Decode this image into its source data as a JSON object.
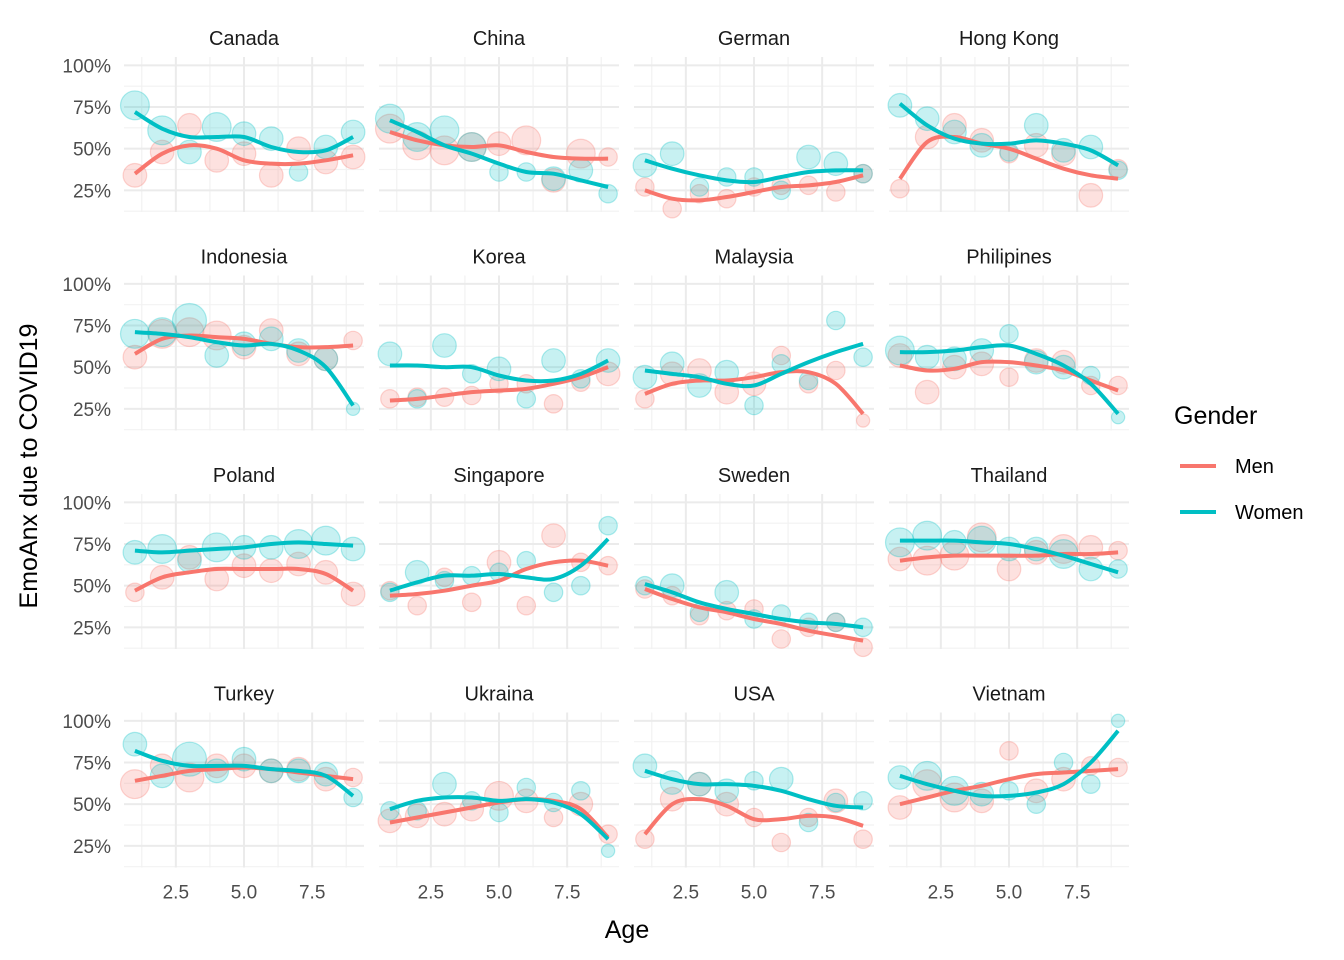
{
  "chart_data": {
    "type": "scatter",
    "facet_layout": "4x4",
    "xlabel": "Age",
    "ylabel": "EmoAnx due to COVID19",
    "x_ticks": [
      "2.5",
      "5.0",
      "7.5"
    ],
    "x_tick_values": [
      2.5,
      5.0,
      7.5
    ],
    "y_ticks": [
      "100%",
      "75%",
      "50%",
      "25%"
    ],
    "y_tick_values": [
      100,
      75,
      50,
      25
    ],
    "xlim": [
      0.6,
      9.4
    ],
    "ylim": [
      12,
      105
    ],
    "grid": true,
    "x": [
      1,
      2,
      3,
      4,
      5,
      6,
      7,
      8,
      9
    ],
    "legend": {
      "title": "Gender",
      "position": "right",
      "entries": [
        "Men",
        "Women"
      ]
    },
    "colors": {
      "Men": "#F8766D",
      "Women": "#00BFC4"
    },
    "overlay": "smooth line",
    "panels": [
      {
        "name": "Canada",
        "men": {
          "points": [
            34,
            48,
            64,
            43,
            47,
            34,
            50,
            42,
            45
          ],
          "sizes": [
            3,
            3,
            3,
            3,
            3,
            3,
            3,
            3,
            3
          ],
          "line": [
            35,
            47,
            52,
            50,
            43,
            41,
            41,
            43,
            46
          ]
        },
        "women": {
          "points": [
            76,
            61,
            48,
            63,
            59,
            56,
            36,
            51,
            60
          ],
          "sizes": [
            4,
            4,
            3,
            4,
            3,
            3,
            2,
            3,
            3
          ],
          "line": [
            72,
            62,
            57,
            57,
            57,
            51,
            48,
            49,
            57
          ]
        }
      },
      {
        "name": "China",
        "men": {
          "points": [
            62,
            52,
            49,
            51,
            53,
            55,
            31,
            47,
            45
          ],
          "sizes": [
            4,
            4,
            4,
            4,
            3,
            4,
            3,
            4,
            2
          ],
          "line": [
            60,
            55,
            52,
            51,
            52,
            48,
            45,
            44,
            44
          ]
        },
        "women": {
          "points": [
            68,
            57,
            61,
            51,
            36,
            36,
            32,
            37,
            23
          ],
          "sizes": [
            4,
            4,
            4,
            4,
            2,
            2,
            3,
            3,
            2
          ],
          "line": [
            67,
            60,
            52,
            47,
            41,
            36,
            35,
            31,
            27
          ]
        }
      },
      {
        "name": "German",
        "men": {
          "points": [
            27,
            14,
            23,
            20,
            27,
            28,
            28,
            24,
            35
          ],
          "sizes": [
            2,
            2,
            2,
            2,
            2,
            2,
            2,
            2,
            2
          ],
          "line": [
            25,
            20,
            19,
            21,
            24,
            27,
            28,
            30,
            34
          ]
        },
        "women": {
          "points": [
            40,
            47,
            27,
            33,
            33,
            25,
            45,
            41,
            35
          ],
          "sizes": [
            3,
            3,
            2,
            2,
            2,
            2,
            3,
            3,
            2
          ],
          "line": [
            43,
            38,
            34,
            31,
            30,
            33,
            36,
            37,
            37
          ]
        }
      },
      {
        "name": "Hong Kong",
        "men": {
          "points": [
            26,
            57,
            64,
            55,
            47,
            52,
            47,
            22,
            38
          ],
          "sizes": [
            2,
            3,
            3,
            3,
            2,
            3,
            3,
            3,
            2
          ],
          "line": [
            32,
            54,
            57,
            53,
            50,
            44,
            38,
            34,
            32
          ]
        },
        "women": {
          "points": [
            76,
            68,
            60,
            52,
            48,
            64,
            49,
            51,
            37
          ],
          "sizes": [
            3,
            3,
            3,
            3,
            2,
            3,
            3,
            3,
            2
          ],
          "line": [
            77,
            64,
            56,
            53,
            53,
            55,
            53,
            49,
            40
          ]
        }
      },
      {
        "name": "Indonesia",
        "men": {
          "points": [
            56,
            70,
            71,
            69,
            62,
            72,
            58,
            55,
            66
          ],
          "sizes": [
            3,
            4,
            4,
            4,
            3,
            3,
            3,
            3,
            2
          ],
          "line": [
            58,
            67,
            69,
            68,
            67,
            64,
            62,
            62,
            63
          ]
        },
        "women": {
          "points": [
            70,
            71,
            78,
            57,
            64,
            67,
            60,
            55,
            25
          ],
          "sizes": [
            4,
            4,
            5,
            3,
            3,
            3,
            3,
            3,
            1
          ],
          "line": [
            71,
            70,
            68,
            65,
            63,
            64,
            60,
            50,
            27
          ]
        }
      },
      {
        "name": "Korea",
        "men": {
          "points": [
            31,
            32,
            32,
            33,
            40,
            40,
            28,
            41,
            46
          ],
          "sizes": [
            2,
            2,
            2,
            2,
            2,
            2,
            2,
            2,
            3
          ],
          "line": [
            30,
            31,
            33,
            35,
            36,
            37,
            40,
            44,
            50
          ]
        },
        "women": {
          "points": [
            58,
            31,
            63,
            46,
            49,
            31,
            54,
            43,
            54
          ],
          "sizes": [
            3,
            2,
            3,
            2,
            3,
            2,
            3,
            2,
            3
          ],
          "line": [
            51,
            51,
            50,
            50,
            45,
            42,
            42,
            46,
            54
          ]
        }
      },
      {
        "name": "Malaysia",
        "men": {
          "points": [
            31,
            46,
            48,
            35,
            40,
            57,
            40,
            48,
            18
          ],
          "sizes": [
            2,
            3,
            3,
            3,
            3,
            2,
            2,
            2,
            1
          ],
          "line": [
            34,
            40,
            42,
            42,
            44,
            47,
            47,
            40,
            22
          ]
        },
        "women": {
          "points": [
            44,
            52,
            39,
            47,
            27,
            52,
            42,
            78,
            56
          ],
          "sizes": [
            3,
            3,
            3,
            3,
            2,
            2,
            2,
            2,
            2
          ],
          "line": [
            48,
            46,
            44,
            40,
            39,
            46,
            53,
            59,
            64
          ]
        }
      },
      {
        "name": "Philipines",
        "men": {
          "points": [
            57,
            35,
            50,
            52,
            44,
            54,
            53,
            39,
            39
          ],
          "sizes": [
            3,
            3,
            3,
            3,
            2,
            3,
            3,
            2,
            2
          ],
          "line": [
            51,
            48,
            49,
            53,
            53,
            51,
            48,
            42,
            36
          ]
        },
        "women": {
          "points": [
            60,
            56,
            55,
            60,
            70,
            53,
            50,
            45,
            20
          ],
          "sizes": [
            4,
            3,
            3,
            3,
            2,
            3,
            3,
            2,
            1
          ],
          "line": [
            59,
            59,
            60,
            62,
            63,
            58,
            51,
            40,
            22
          ]
        }
      },
      {
        "name": "Poland",
        "men": {
          "points": [
            46,
            55,
            67,
            54,
            62,
            59,
            63,
            58,
            45
          ],
          "sizes": [
            2,
            3,
            3,
            3,
            3,
            3,
            3,
            3,
            3
          ],
          "line": [
            47,
            55,
            58,
            60,
            60,
            60,
            60,
            57,
            47
          ]
        },
        "women": {
          "points": [
            70,
            72,
            65,
            73,
            73,
            73,
            75,
            77,
            72
          ],
          "sizes": [
            3,
            4,
            3,
            4,
            3,
            3,
            4,
            4,
            3
          ],
          "line": [
            71,
            70,
            71,
            72,
            73,
            75,
            76,
            75,
            74
          ]
        }
      },
      {
        "name": "Singapore",
        "men": {
          "points": [
            47,
            38,
            55,
            40,
            64,
            38,
            80,
            64,
            62
          ],
          "sizes": [
            2,
            2,
            2,
            2,
            3,
            2,
            3,
            2,
            2
          ],
          "line": [
            44,
            45,
            47,
            50,
            53,
            60,
            64,
            65,
            62
          ]
        },
        "women": {
          "points": [
            46,
            58,
            53,
            56,
            58,
            65,
            46,
            50,
            86
          ],
          "sizes": [
            2,
            3,
            2,
            2,
            2,
            2,
            2,
            2,
            2
          ],
          "line": [
            47,
            52,
            56,
            56,
            57,
            55,
            54,
            62,
            78
          ]
        }
      },
      {
        "name": "Sweden",
        "men": {
          "points": [
            48,
            44,
            32,
            35,
            36,
            18,
            25,
            28,
            13
          ],
          "sizes": [
            2,
            2,
            2,
            2,
            2,
            2,
            2,
            2,
            2
          ],
          "line": [
            48,
            42,
            37,
            34,
            30,
            27,
            23,
            20,
            17
          ]
        },
        "women": {
          "points": [
            50,
            50,
            34,
            46,
            30,
            33,
            28,
            28,
            25
          ],
          "sizes": [
            2,
            3,
            2,
            3,
            2,
            2,
            2,
            2,
            2
          ],
          "line": [
            51,
            46,
            40,
            36,
            33,
            30,
            28,
            27,
            25
          ]
        }
      },
      {
        "name": "Thailand",
        "men": {
          "points": [
            66,
            65,
            68,
            79,
            60,
            70,
            72,
            73,
            71
          ],
          "sizes": [
            3,
            4,
            4,
            4,
            3,
            3,
            4,
            3,
            2
          ],
          "line": [
            65,
            67,
            68,
            68,
            68,
            68,
            69,
            69,
            70
          ]
        },
        "women": {
          "points": [
            76,
            80,
            76,
            77,
            72,
            72,
            69,
            60,
            60
          ],
          "sizes": [
            4,
            4,
            3,
            4,
            3,
            3,
            4,
            3,
            2
          ],
          "line": [
            77,
            77,
            77,
            76,
            75,
            72,
            68,
            63,
            58
          ]
        }
      },
      {
        "name": "Turkey",
        "men": {
          "points": [
            62,
            73,
            66,
            73,
            73,
            70,
            71,
            65,
            66
          ],
          "sizes": [
            4,
            3,
            4,
            3,
            3,
            3,
            3,
            3,
            2
          ],
          "line": [
            64,
            67,
            70,
            71,
            72,
            71,
            69,
            67,
            65
          ]
        },
        "women": {
          "points": [
            86,
            67,
            77,
            70,
            77,
            70,
            70,
            68,
            54
          ],
          "sizes": [
            3,
            3,
            5,
            3,
            3,
            3,
            3,
            3,
            2
          ],
          "line": [
            82,
            76,
            73,
            73,
            73,
            71,
            70,
            67,
            55
          ]
        }
      },
      {
        "name": "Ukraina",
        "men": {
          "points": [
            40,
            43,
            44,
            47,
            55,
            52,
            42,
            50,
            32
          ],
          "sizes": [
            3,
            3,
            3,
            3,
            4,
            3,
            2,
            3,
            2
          ],
          "line": [
            39,
            42,
            45,
            48,
            51,
            53,
            52,
            47,
            30
          ]
        },
        "women": {
          "points": [
            46,
            46,
            62,
            52,
            45,
            60,
            51,
            58,
            22
          ],
          "sizes": [
            2,
            2,
            3,
            2,
            2,
            2,
            2,
            2,
            1
          ],
          "line": [
            47,
            52,
            54,
            54,
            52,
            53,
            51,
            44,
            29
          ]
        }
      },
      {
        "name": "USA",
        "men": {
          "points": [
            29,
            53,
            62,
            50,
            42,
            27,
            42,
            52,
            29
          ],
          "sizes": [
            2,
            3,
            3,
            3,
            2,
            2,
            2,
            3,
            2
          ],
          "line": [
            32,
            50,
            53,
            49,
            41,
            41,
            43,
            42,
            37
          ]
        },
        "women": {
          "points": [
            73,
            63,
            62,
            58,
            64,
            65,
            39,
            51,
            52
          ],
          "sizes": [
            3,
            3,
            3,
            3,
            2,
            3,
            2,
            2,
            2
          ],
          "line": [
            70,
            65,
            62,
            62,
            61,
            58,
            53,
            49,
            48
          ]
        }
      },
      {
        "name": "Vietnam",
        "men": {
          "points": [
            48,
            62,
            54,
            52,
            82,
            58,
            65,
            73,
            72
          ],
          "sizes": [
            3,
            4,
            4,
            3,
            2,
            3,
            3,
            2,
            2
          ],
          "line": [
            50,
            54,
            58,
            61,
            65,
            68,
            69,
            70,
            71
          ]
        },
        "women": {
          "points": [
            66,
            67,
            58,
            56,
            58,
            50,
            75,
            62,
            100
          ],
          "sizes": [
            3,
            4,
            4,
            3,
            2,
            2,
            2,
            2,
            1
          ],
          "line": [
            67,
            62,
            58,
            55,
            55,
            57,
            62,
            75,
            94
          ]
        }
      }
    ]
  }
}
